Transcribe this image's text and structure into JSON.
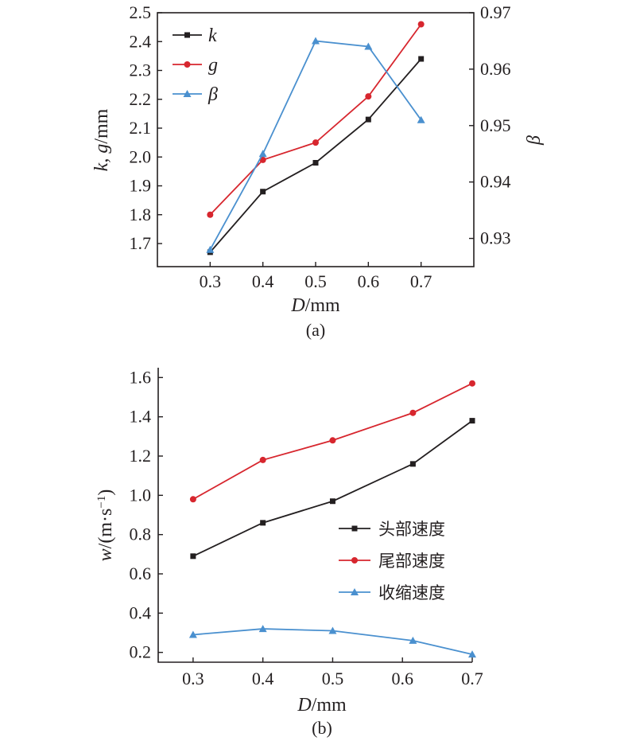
{
  "chart_data": [
    {
      "type": "line",
      "panel_label": "(a)",
      "x": [
        0.3,
        0.4,
        0.5,
        0.6,
        0.7
      ],
      "xlim": [
        0.2,
        0.8
      ],
      "xticks": [
        "0.3",
        "0.4",
        "0.5",
        "0.6",
        "0.7"
      ],
      "xlabel_var": "D",
      "xlabel_unit": "/mm",
      "ylabel_left_vars": "k, g",
      "ylabel_left_unit": "/mm",
      "ylim_left": [
        1.62,
        2.5
      ],
      "yticks_left": [
        "1.7",
        "1.8",
        "1.9",
        "2.0",
        "2.1",
        "2.2",
        "2.3",
        "2.4",
        "2.5"
      ],
      "ylabel_right": "β",
      "ylim_right": [
        0.925,
        0.97
      ],
      "yticks_right": [
        "0.93",
        "0.94",
        "0.95",
        "0.96",
        "0.97"
      ],
      "legend_position": "top-left",
      "series": [
        {
          "name": "k",
          "axis": "left",
          "color": "#231f20",
          "marker": "square",
          "values": [
            1.67,
            1.88,
            1.98,
            2.13,
            2.34
          ]
        },
        {
          "name": "g",
          "axis": "left",
          "color": "#d7262e",
          "marker": "circle",
          "values": [
            1.8,
            1.99,
            2.05,
            2.21,
            2.46
          ]
        },
        {
          "name": "β",
          "axis": "right",
          "color": "#4a90cf",
          "marker": "triangle",
          "values": [
            0.928,
            0.945,
            0.965,
            0.964,
            0.951
          ]
        }
      ]
    },
    {
      "type": "line",
      "panel_label": "(b)",
      "xlim": [
        0.25,
        0.7
      ],
      "xticks": [
        "0.3",
        "0.4",
        "0.5",
        "0.6",
        "0.7"
      ],
      "xlabel_var": "D",
      "xlabel_unit": "/mm",
      "ylabel_var": "w",
      "ylabel_unit": "/(m·s",
      "ylabel_sup": "−1",
      "ylabel_close": ")",
      "ylim": [
        0.15,
        1.65
      ],
      "yticks": [
        "0.2",
        "0.4",
        "0.6",
        "0.8",
        "1.0",
        "1.2",
        "1.4",
        "1.6"
      ],
      "legend_position": "center-right",
      "series": [
        {
          "name": "头部速度",
          "color": "#231f20",
          "marker": "square",
          "x": [
            0.3,
            0.4,
            0.5,
            0.615,
            0.7
          ],
          "values": [
            0.69,
            0.86,
            0.97,
            1.16,
            1.38
          ]
        },
        {
          "name": "尾部速度",
          "color": "#d7262e",
          "marker": "circle",
          "x": [
            0.3,
            0.4,
            0.5,
            0.615,
            0.7
          ],
          "values": [
            0.98,
            1.18,
            1.28,
            1.42,
            1.57
          ]
        },
        {
          "name": "收缩速度",
          "color": "#4a90cf",
          "marker": "triangle",
          "x": [
            0.3,
            0.4,
            0.5,
            0.615,
            0.7
          ],
          "values": [
            0.29,
            0.32,
            0.31,
            0.26,
            0.19
          ]
        }
      ]
    }
  ]
}
